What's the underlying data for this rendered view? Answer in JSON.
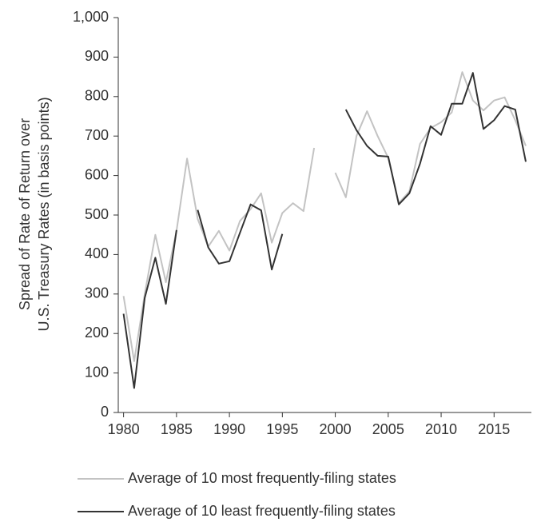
{
  "chart_data": {
    "type": "line",
    "y_label": [
      "Spread of Rate of Return over",
      "U.S. Treasury Rates (in basis points)"
    ],
    "x": [
      1980,
      1981,
      1982,
      1983,
      1984,
      1985,
      1986,
      1987,
      1988,
      1989,
      1990,
      1991,
      1992,
      1993,
      1994,
      1995,
      1996,
      1997,
      1998,
      1999,
      2000,
      2001,
      2002,
      2003,
      2004,
      2005,
      2006,
      2007,
      2008,
      2009,
      2010,
      2011,
      2012,
      2013,
      2014,
      2015,
      2016,
      2017,
      2018
    ],
    "series": [
      {
        "name": "Average of 10 most frequently-filing states",
        "color": "#c3c3c3",
        "values": [
          295,
          130,
          300,
          450,
          330,
          460,
          643,
          490,
          420,
          460,
          410,
          485,
          515,
          555,
          430,
          505,
          530,
          510,
          670,
          null,
          607,
          545,
          700,
          763,
          700,
          645,
          530,
          560,
          680,
          720,
          735,
          760,
          862,
          790,
          765,
          790,
          798,
          740,
          675
        ]
      },
      {
        "name": "Average of 10 least frequently-filing states",
        "color": "#333333",
        "values": [
          250,
          62,
          290,
          392,
          275,
          462,
          null,
          513,
          418,
          377,
          383,
          455,
          527,
          512,
          362,
          452,
          null,
          null,
          null,
          null,
          null,
          767,
          715,
          675,
          650,
          648,
          527,
          555,
          630,
          725,
          703,
          782,
          782,
          860,
          718,
          740,
          776,
          767,
          635
        ]
      }
    ],
    "xlim": [
      1979.5,
      2018.3
    ],
    "xticks": [
      1980,
      1985,
      1990,
      1995,
      2000,
      2005,
      2010,
      2015
    ],
    "ylim": [
      0,
      1000
    ],
    "yticks": [
      0,
      100,
      200,
      300,
      400,
      500,
      600,
      700,
      800,
      900,
      {
        "value": 1000,
        "label": "1,000"
      }
    ],
    "grid": false
  }
}
